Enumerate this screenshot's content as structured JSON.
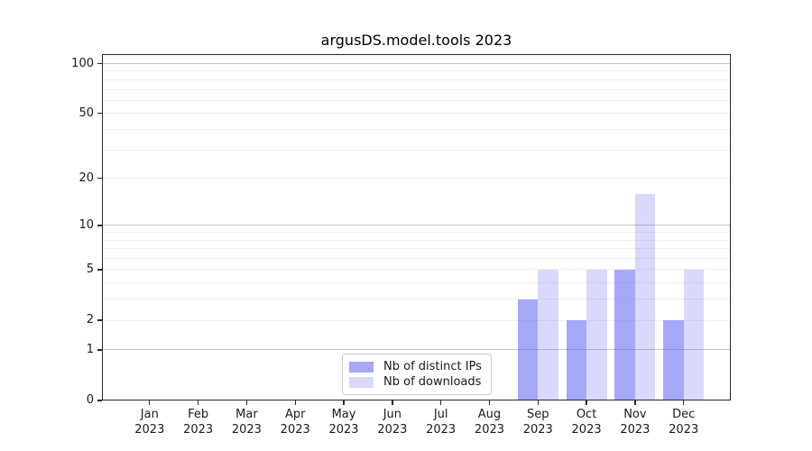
{
  "chart_data": {
    "type": "bar",
    "title": "argusDS.model.tools 2023",
    "categories": [
      "Jan",
      "Feb",
      "Mar",
      "Apr",
      "May",
      "Jun",
      "Jul",
      "Aug",
      "Sep",
      "Oct",
      "Nov",
      "Dec"
    ],
    "year_label": "2023",
    "series": [
      {
        "name": "Nb of distinct IPs",
        "color": "rgba(81,81,241,0.50)",
        "values": [
          0,
          0,
          0,
          0,
          0,
          0,
          0,
          0,
          3,
          2,
          5,
          2
        ]
      },
      {
        "name": "Nb of downloads",
        "color": "rgba(81,81,241,0.22)",
        "values": [
          0,
          0,
          0,
          0,
          0,
          0,
          0,
          0,
          5,
          5,
          16,
          5
        ]
      }
    ],
    "yscale": "log10(1+x)",
    "ylim": [
      0,
      120
    ],
    "ytick_values": [
      0,
      1,
      2,
      5,
      10,
      20,
      50,
      100
    ],
    "ygrid_major_values": [
      1,
      10,
      100
    ],
    "ygrid_minor_values": [
      2,
      3,
      4,
      5,
      6,
      7,
      8,
      9,
      20,
      30,
      40,
      50,
      60,
      70,
      80,
      90
    ],
    "grid": true,
    "legend_position": "lower center inside"
  }
}
